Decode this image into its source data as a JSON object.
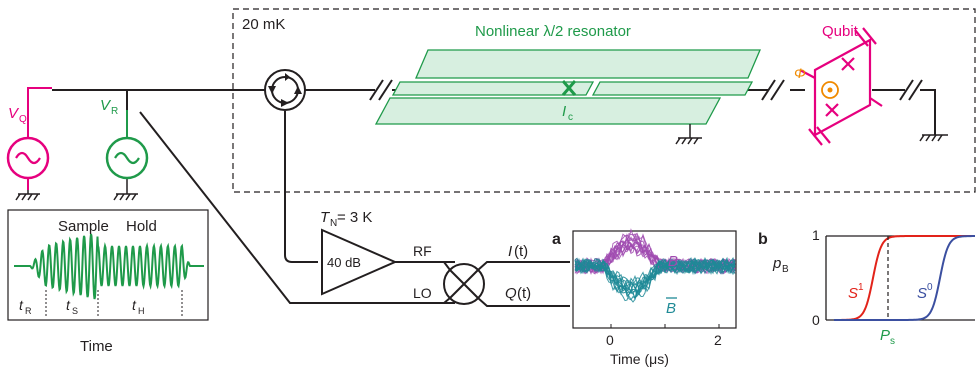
{
  "cryostat": {
    "temperature_label": "20 mK"
  },
  "resonator": {
    "title": "Nonlinear λ/2 resonator",
    "critical_current_main": "I",
    "critical_current_sub": "c"
  },
  "qubit": {
    "title": "Qubit",
    "flux_label": "Φ"
  },
  "sources": {
    "qubit_drive": {
      "main": "V",
      "sub": "Q"
    },
    "readout_drive": {
      "main": "V",
      "sub": "R"
    }
  },
  "pulse_inset": {
    "sample_label": "Sample",
    "hold_label": "Hold",
    "time_label": "Time",
    "t_r": {
      "main": "t",
      "sub": "R"
    },
    "t_s": {
      "main": "t",
      "sub": "S"
    },
    "t_h": {
      "main": "t",
      "sub": "H"
    }
  },
  "amplifier": {
    "noise_temp_main": "T",
    "noise_temp_sub": "N",
    "noise_temp_value": " = 3 K",
    "gain_label": "40 dB"
  },
  "mixer": {
    "rf_label": "RF",
    "lo_label": "LO",
    "i_label": "I",
    "i_suffix": "(t)",
    "q_label": "Q",
    "q_suffix": "(t)"
  },
  "panel_a": {
    "panel_letter": "a",
    "xlabel": "Time (μs)",
    "x_ticks": [
      "0",
      "2"
    ],
    "b_label": "B",
    "b_bar_label": "B",
    "colors": {
      "B": "#a04bb0",
      "B_bar": "#1f8a96"
    }
  },
  "panel_b": {
    "panel_letter": "b",
    "ylabel_main": "p",
    "ylabel_sub": "B",
    "y_ticks": [
      "0",
      "1"
    ],
    "s1_main": "S",
    "s1_sup": "1",
    "s0_main": "S",
    "s0_sup": "0",
    "ps_main": "P",
    "ps_sub": "s",
    "colors": {
      "S1": "#e2231a",
      "S0": "#3b4fa0",
      "Ps": "#1f9a4a"
    }
  },
  "colors": {
    "qubit_magenta": "#e6007e",
    "resonator_green": "#1f9a4a",
    "flux_orange": "#f08a00",
    "wire": "#231f20"
  }
}
